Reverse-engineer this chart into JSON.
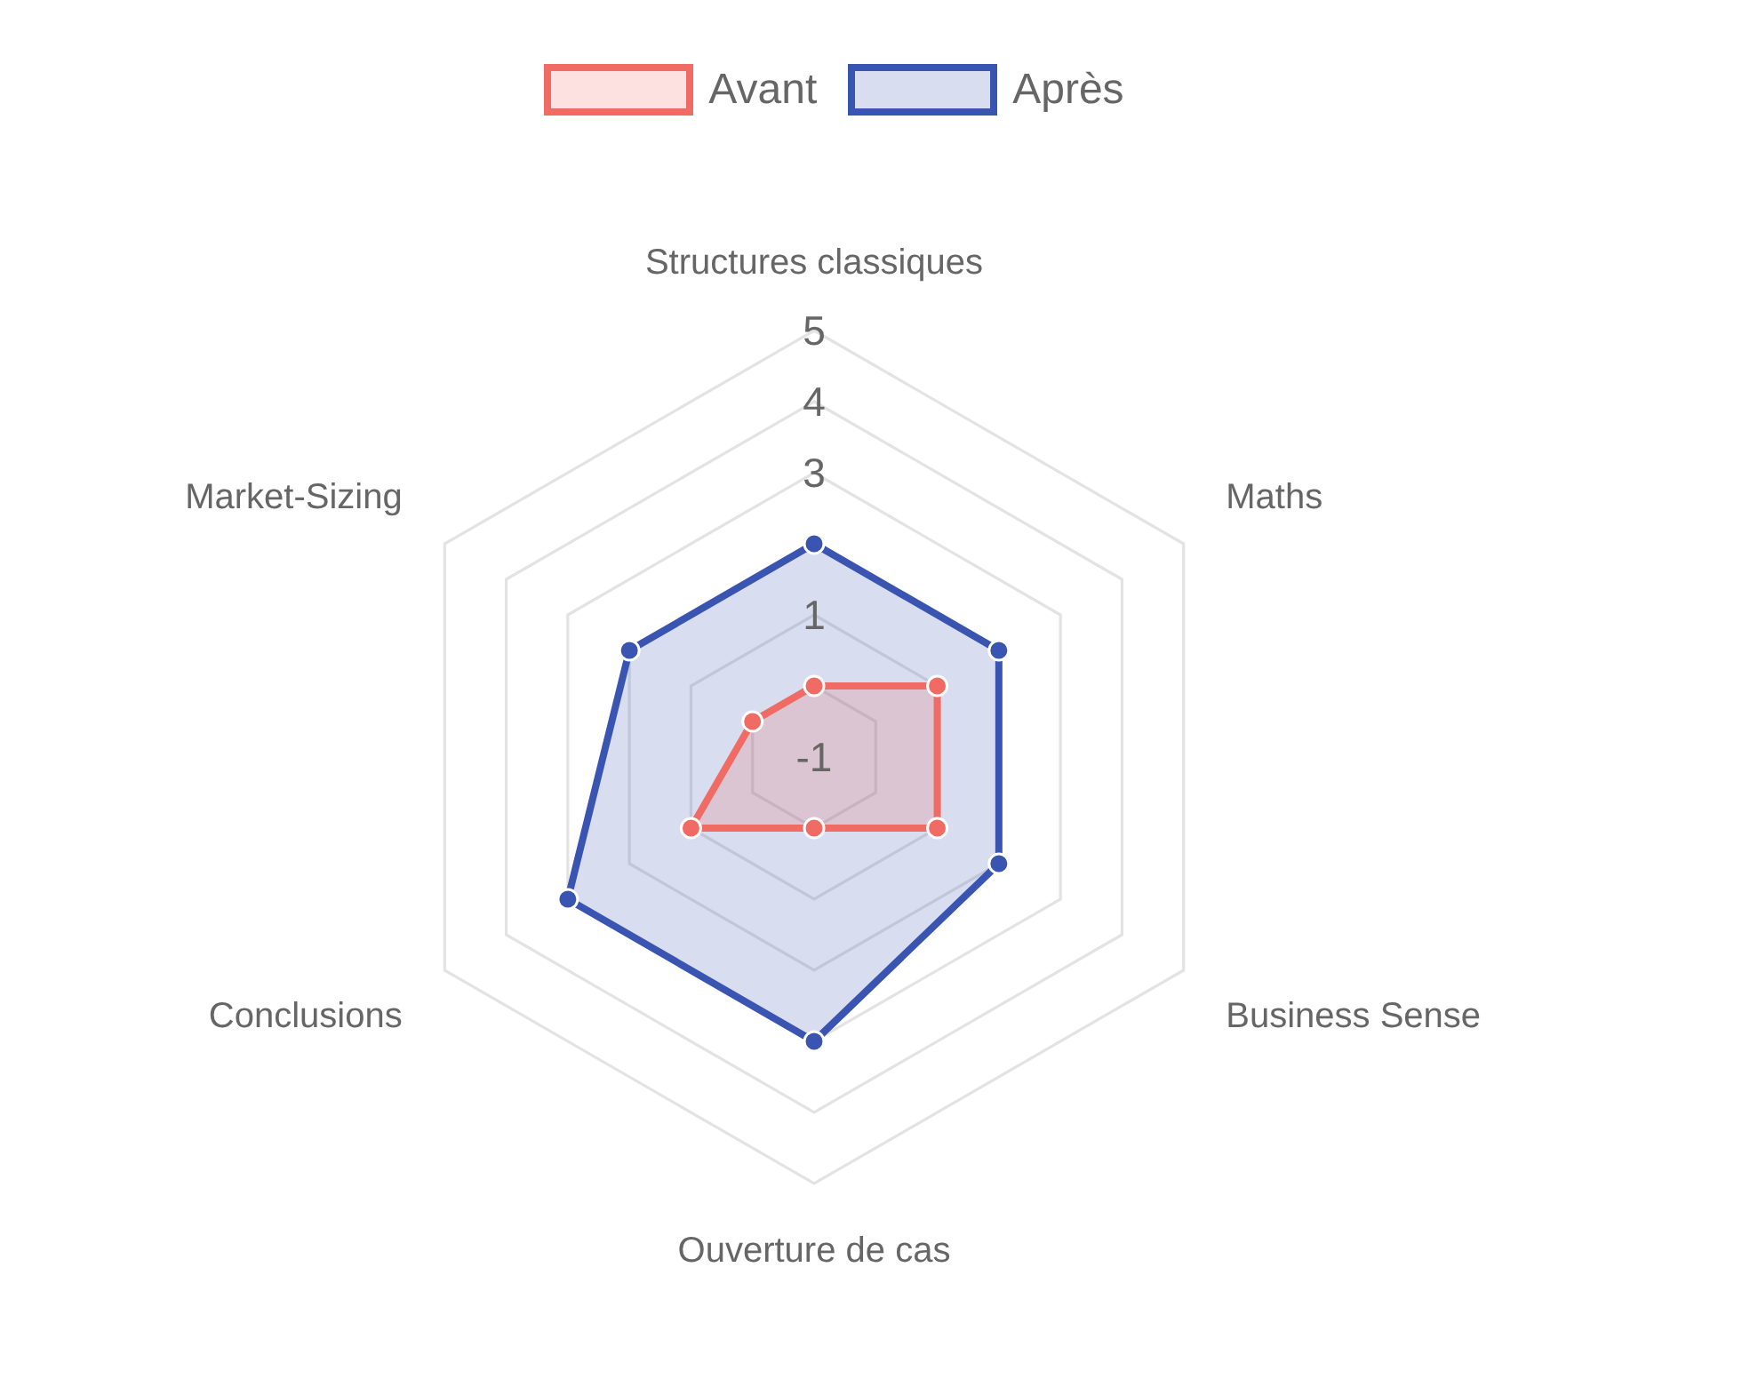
{
  "chart_data": {
    "type": "radar",
    "categories": [
      "Structures classiques",
      "Maths",
      "Business Sense",
      "Ouverture de cas",
      "Conclusions",
      "Market-Sizing"
    ],
    "series": [
      {
        "name": "Avant",
        "color": "#ef6b63",
        "values": [
          0,
          1,
          1,
          0,
          1,
          0
        ]
      },
      {
        "name": "Après",
        "color": "#3a54b1",
        "values": [
          2,
          2,
          2,
          3,
          3,
          2
        ]
      }
    ],
    "ylim": [
      -1,
      5
    ],
    "yticks": [
      -1,
      1,
      3,
      4,
      5
    ],
    "grid": true,
    "legend": "top",
    "marker": "circle"
  }
}
